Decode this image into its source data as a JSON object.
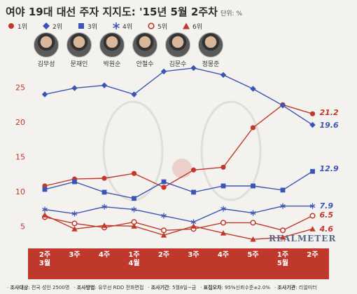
{
  "header": {
    "title": "여야 19대 대선 주자 지지도: '15년 5월 2주차",
    "unit": "단위: %"
  },
  "legend": [
    {
      "rank": "1위",
      "shape": "circle-filled",
      "color": "#c0392b"
    },
    {
      "rank": "2위",
      "shape": "diamond",
      "color": "#3a55b5"
    },
    {
      "rank": "3위",
      "shape": "square",
      "color": "#3a55b5"
    },
    {
      "rank": "4위",
      "shape": "asterisk",
      "color": "#3a55b5"
    },
    {
      "rank": "5위",
      "shape": "circle-open",
      "color": "#c0392b"
    },
    {
      "rank": "6위",
      "shape": "triangle",
      "color": "#c0392b"
    }
  ],
  "candidates": [
    "김무성",
    "문재인",
    "박원순",
    "안철수",
    "김문수",
    "정몽준"
  ],
  "watermark": "REALMETER",
  "footer": [
    {
      "label": "조사대상",
      "text": "전국 성인 2500명"
    },
    {
      "label": "조사방법",
      "text": "유무선 RDD 전화면접"
    },
    {
      "label": "조사기간",
      "text": "5월8일~금"
    },
    {
      "label": "표집오차",
      "text": "95%신뢰수준±2.0%"
    },
    {
      "label": "조사기관",
      "text": "리얼미터"
    }
  ],
  "chart_data": {
    "type": "line",
    "title": "여야 19대 대선 주자 지지도: '15년 5월 2주차",
    "ylim": [
      2,
      28.5
    ],
    "yticks": [
      5,
      10,
      15,
      20,
      25
    ],
    "grid": false,
    "x": [
      "2주\n3월",
      "3주",
      "4주",
      "1주\n4월",
      "2주",
      "3주",
      "4주",
      "5주",
      "1주\n5월",
      "2주"
    ],
    "series": [
      {
        "marker": "circle-filled",
        "color": "#c0392b",
        "values": [
          10.8,
          11.8,
          11.9,
          12.6,
          10.6,
          13.1,
          13.5,
          19.2,
          22.5,
          21.2
        ],
        "end_label": "21.2"
      },
      {
        "marker": "diamond",
        "color": "#3a55b5",
        "values": [
          24.0,
          24.9,
          25.3,
          24.0,
          27.3,
          27.8,
          26.8,
          24.8,
          22.4,
          19.6
        ],
        "end_label": "19.6"
      },
      {
        "marker": "square",
        "color": "#3a55b5",
        "values": [
          10.3,
          11.4,
          9.9,
          9.0,
          11.4,
          9.9,
          10.8,
          10.8,
          10.2,
          12.9
        ],
        "end_label": "12.9"
      },
      {
        "marker": "asterisk",
        "color": "#3a55b5",
        "values": [
          7.4,
          6.8,
          7.8,
          7.4,
          6.5,
          5.6,
          7.5,
          6.9,
          7.9,
          7.9
        ],
        "end_label": "7.9"
      },
      {
        "marker": "circle-open",
        "color": "#c0392b",
        "values": [
          6.3,
          5.4,
          4.8,
          5.6,
          4.4,
          4.6,
          5.5,
          5.5,
          4.4,
          6.5
        ],
        "end_label": "6.5"
      },
      {
        "marker": "triangle",
        "color": "#c0392b",
        "values": [
          6.6,
          4.6,
          5.1,
          5.0,
          3.7,
          5.0,
          4.0,
          3.1,
          3.4,
          4.6
        ],
        "end_label": "4.6"
      }
    ]
  }
}
